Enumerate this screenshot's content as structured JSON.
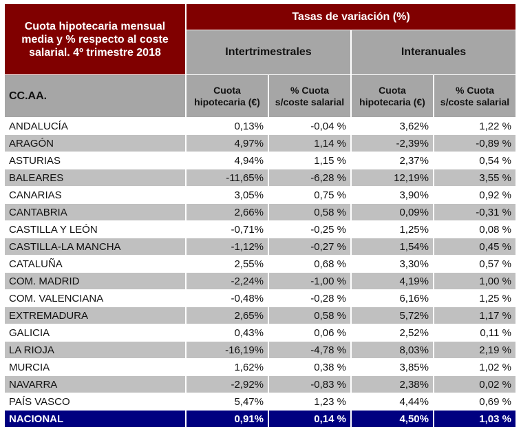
{
  "header": {
    "title": "Cuota hipotecaria mensual media y % respecto al coste salarial. 4º trimestre 2018",
    "band": "Tasas de variación (%)",
    "group1": "Intertrimestrales",
    "group2": "Interanuales",
    "region_col": "CC.AA.",
    "col_cuota": "Cuota hipotecaria (€)",
    "col_pct": "% Cuota s/coste salarial"
  },
  "rows": [
    {
      "name": "ANDALUCÍA",
      "v": [
        "0,13%",
        "-0,04 %",
        "3,62%",
        "1,22 %"
      ]
    },
    {
      "name": "ARAGÓN",
      "v": [
        "4,97%",
        "1,14 %",
        "-2,39%",
        "-0,89 %"
      ]
    },
    {
      "name": "ASTURIAS",
      "v": [
        "4,94%",
        "1,15 %",
        "2,37%",
        "0,54 %"
      ]
    },
    {
      "name": "BALEARES",
      "v": [
        "-11,65%",
        "-6,28 %",
        "12,19%",
        "3,55 %"
      ]
    },
    {
      "name": "CANARIAS",
      "v": [
        "3,05%",
        "0,75 %",
        "3,90%",
        "0,92 %"
      ]
    },
    {
      "name": "CANTABRIA",
      "v": [
        "2,66%",
        "0,58 %",
        "0,09%",
        "-0,31 %"
      ]
    },
    {
      "name": "CASTILLA Y LEÓN",
      "v": [
        "-0,71%",
        "-0,25 %",
        "1,25%",
        "0,08 %"
      ]
    },
    {
      "name": "CASTILLA-LA MANCHA",
      "v": [
        "-1,12%",
        "-0,27 %",
        "1,54%",
        "0,45 %"
      ]
    },
    {
      "name": "CATALUÑA",
      "v": [
        "2,55%",
        "0,68 %",
        "3,30%",
        "0,57 %"
      ]
    },
    {
      "name": "COM. MADRID",
      "v": [
        "-2,24%",
        "-1,00 %",
        "4,19%",
        "1,00 %"
      ]
    },
    {
      "name": "COM. VALENCIANA",
      "v": [
        "-0,48%",
        "-0,28 %",
        "6,16%",
        "1,25 %"
      ]
    },
    {
      "name": "EXTREMADURA",
      "v": [
        "2,65%",
        "0,58 %",
        "5,72%",
        "1,17 %"
      ]
    },
    {
      "name": "GALICIA",
      "v": [
        "0,43%",
        "0,06 %",
        "2,52%",
        "0,11 %"
      ]
    },
    {
      "name": "LA RIOJA",
      "v": [
        "-16,19%",
        "-4,78 %",
        "8,03%",
        "2,19 %"
      ]
    },
    {
      "name": "MURCIA",
      "v": [
        "1,62%",
        "0,38 %",
        "3,85%",
        "1,02 %"
      ]
    },
    {
      "name": "NAVARRA",
      "v": [
        "-2,92%",
        "-0,83 %",
        "2,38%",
        "0,02 %"
      ]
    },
    {
      "name": "PAÍS VASCO",
      "v": [
        "5,47%",
        "1,23 %",
        "4,44%",
        "0,69 %"
      ]
    }
  ],
  "total": {
    "name": "NACIONAL",
    "v": [
      "0,91%",
      "0,14 %",
      "4,50%",
      "1,03 %"
    ]
  },
  "colors": {
    "maroon": "#800000",
    "header_gray": "#a6a6a6",
    "row_gray": "#c0c0c0",
    "total_navy": "#000080"
  }
}
